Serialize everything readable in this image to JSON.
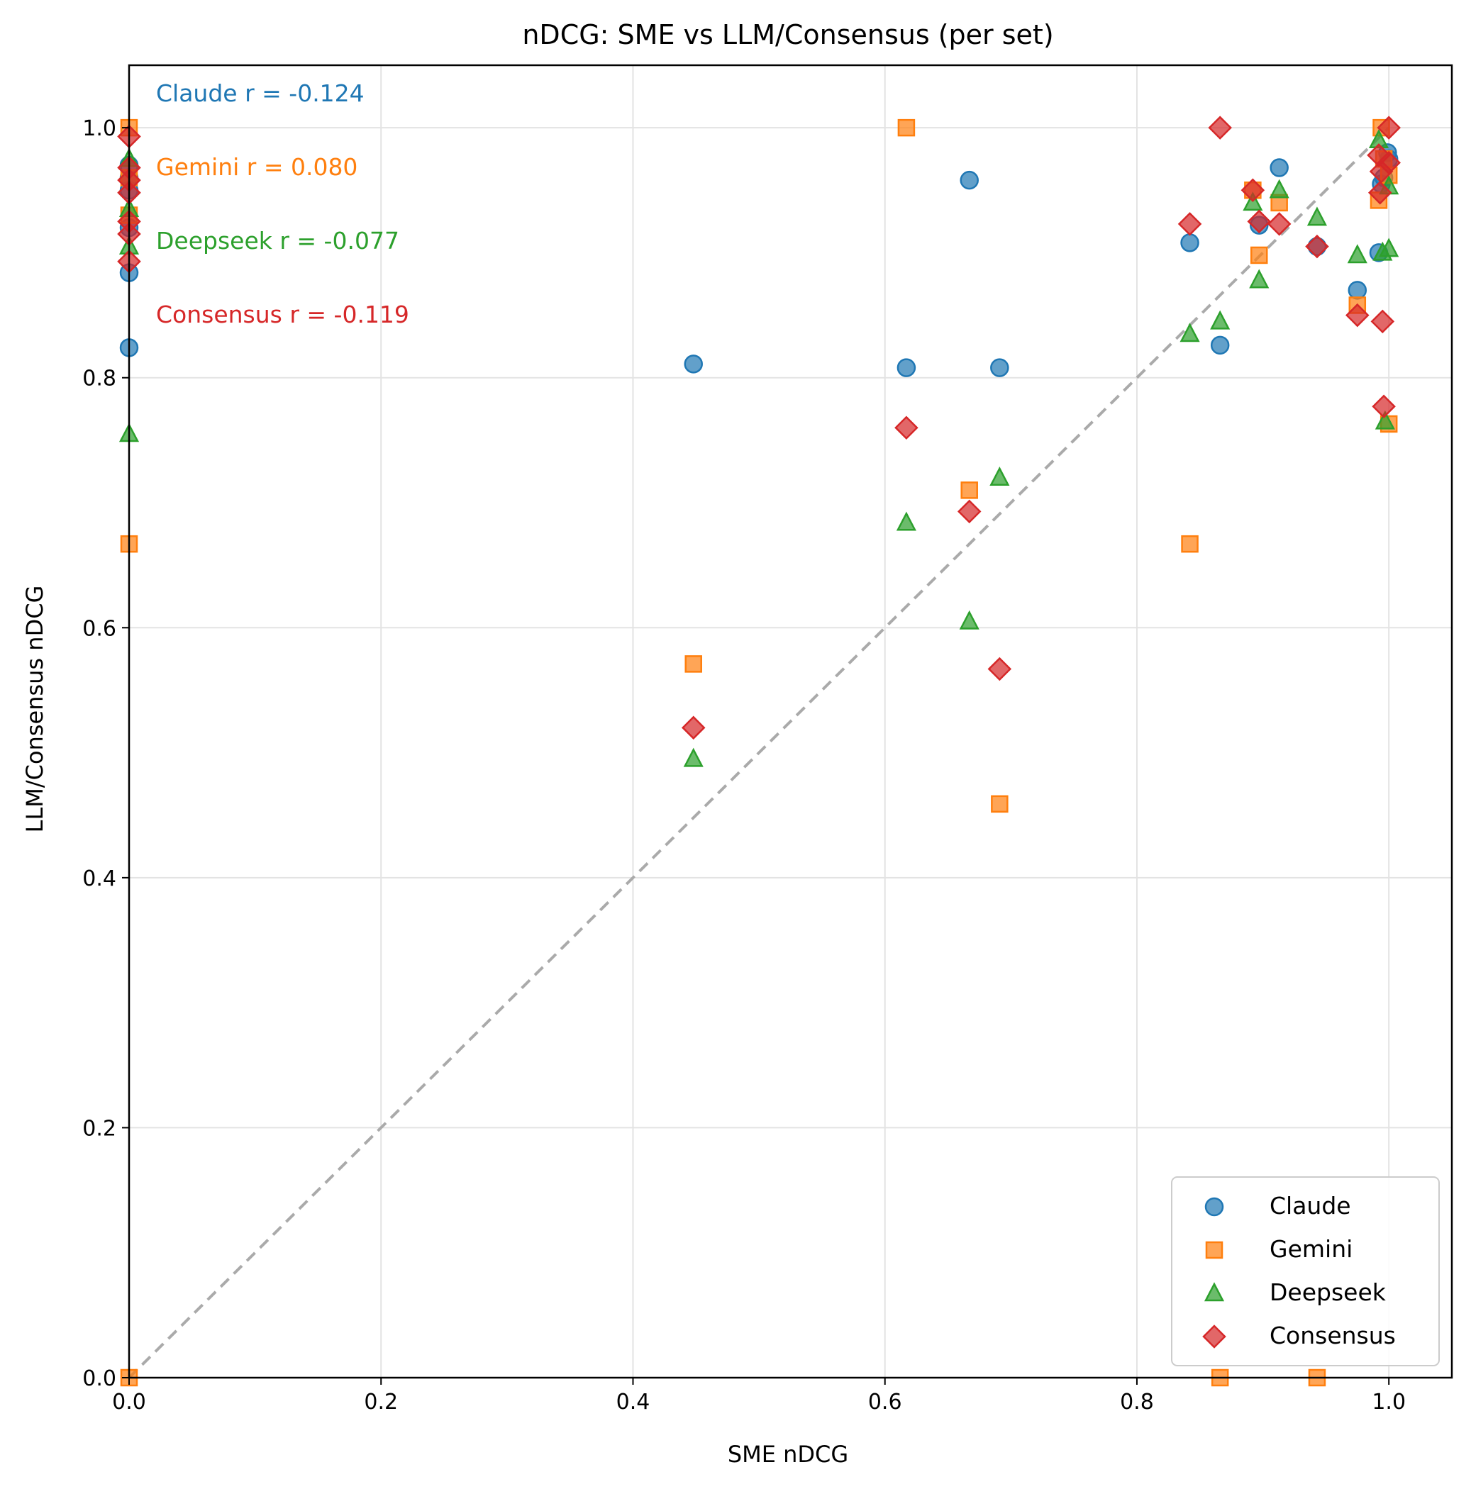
{
  "chart_data": {
    "type": "scatter",
    "title": "nDCG: SME vs LLM/Consensus (per set)",
    "xlabel": "SME nDCG",
    "ylabel": "LLM/Consensus nDCG",
    "xlim": [
      0.0,
      1.05
    ],
    "ylim": [
      0.0,
      1.05
    ],
    "xticks": [
      0.0,
      0.2,
      0.4,
      0.6,
      0.8,
      1.0
    ],
    "yticks": [
      0.0,
      0.2,
      0.4,
      0.6,
      0.8,
      1.0
    ],
    "xtick_labels": [
      "0.0",
      "0.2",
      "0.4",
      "0.6",
      "0.8",
      "1.0"
    ],
    "ytick_labels": [
      "0.0",
      "0.2",
      "0.4",
      "0.6",
      "0.8",
      "1.0"
    ],
    "grid": true,
    "legend_position": "lower-right",
    "reference_line": {
      "from": [
        0,
        0
      ],
      "to": [
        1,
        1
      ],
      "style": "dashed",
      "color": "#aaaaaa"
    },
    "annotations": [
      {
        "text": "Claude r = -0.124",
        "color": "#1f77b4"
      },
      {
        "text": "Gemini r = 0.080",
        "color": "#ff7f0e"
      },
      {
        "text": "Deepseek r = -0.077",
        "color": "#2ca02c"
      },
      {
        "text": "Consensus r = -0.119",
        "color": "#d62728"
      }
    ],
    "series": [
      {
        "name": "Claude",
        "marker": "circle",
        "color": "#1f77b4",
        "points": [
          [
            0.0,
            0.97
          ],
          [
            0.0,
            0.96
          ],
          [
            0.0,
            0.95
          ],
          [
            0.0,
            0.92
          ],
          [
            0.0,
            0.884
          ],
          [
            0.0,
            0.824
          ],
          [
            0.448,
            0.811
          ],
          [
            0.617,
            0.808
          ],
          [
            0.667,
            0.958
          ],
          [
            0.691,
            0.808
          ],
          [
            0.842,
            0.908
          ],
          [
            0.866,
            0.826
          ],
          [
            0.897,
            0.922
          ],
          [
            0.913,
            0.968
          ],
          [
            0.943,
            0.905
          ],
          [
            0.975,
            0.87
          ],
          [
            0.992,
            0.9
          ],
          [
            0.994,
            0.955
          ],
          [
            0.996,
            0.96
          ],
          [
            0.999,
            0.98
          ],
          [
            1.0,
            0.975
          ]
        ]
      },
      {
        "name": "Gemini",
        "marker": "square",
        "color": "#ff7f0e",
        "points": [
          [
            0.0,
            1.0
          ],
          [
            0.0,
            0.96
          ],
          [
            0.0,
            0.93
          ],
          [
            0.0,
            0.667
          ],
          [
            0.0,
            0.0
          ],
          [
            0.448,
            0.571
          ],
          [
            0.617,
            1.0
          ],
          [
            0.667,
            0.71
          ],
          [
            0.691,
            0.459
          ],
          [
            0.842,
            0.667
          ],
          [
            0.866,
            0.0
          ],
          [
            0.892,
            0.95
          ],
          [
            0.897,
            0.898
          ],
          [
            0.913,
            0.94
          ],
          [
            0.943,
            0.0
          ],
          [
            0.975,
            0.858
          ],
          [
            0.992,
            0.942
          ],
          [
            0.994,
            1.0
          ],
          [
            0.996,
            0.975
          ],
          [
            1.0,
            0.962
          ],
          [
            1.0,
            0.763
          ]
        ]
      },
      {
        "name": "Deepseek",
        "marker": "triangle",
        "color": "#2ca02c",
        "points": [
          [
            0.0,
            0.975
          ],
          [
            0.0,
            0.935
          ],
          [
            0.0,
            0.905
          ],
          [
            0.0,
            0.755
          ],
          [
            0.448,
            0.495
          ],
          [
            0.617,
            0.684
          ],
          [
            0.667,
            0.605
          ],
          [
            0.691,
            0.72
          ],
          [
            0.842,
            0.835
          ],
          [
            0.866,
            0.845
          ],
          [
            0.892,
            0.94
          ],
          [
            0.897,
            0.878
          ],
          [
            0.913,
            0.95
          ],
          [
            0.943,
            0.928
          ],
          [
            0.975,
            0.898
          ],
          [
            0.992,
            0.99
          ],
          [
            0.995,
            0.9
          ],
          [
            0.997,
            0.765
          ],
          [
            1.0,
            0.903
          ],
          [
            1.0,
            0.953
          ]
        ]
      },
      {
        "name": "Consensus",
        "marker": "diamond",
        "color": "#d62728",
        "points": [
          [
            0.0,
            0.993
          ],
          [
            0.0,
            0.968
          ],
          [
            0.0,
            0.958
          ],
          [
            0.0,
            0.948
          ],
          [
            0.0,
            0.925
          ],
          [
            0.0,
            0.915
          ],
          [
            0.0,
            0.893
          ],
          [
            0.448,
            0.52
          ],
          [
            0.617,
            0.76
          ],
          [
            0.667,
            0.693
          ],
          [
            0.691,
            0.567
          ],
          [
            0.842,
            0.923
          ],
          [
            0.866,
            1.0
          ],
          [
            0.892,
            0.95
          ],
          [
            0.897,
            0.925
          ],
          [
            0.913,
            0.923
          ],
          [
            0.943,
            0.905
          ],
          [
            0.975,
            0.85
          ],
          [
            0.992,
            0.978
          ],
          [
            0.993,
            0.948
          ],
          [
            0.994,
            0.965
          ],
          [
            0.995,
            0.845
          ],
          [
            0.996,
            0.777
          ],
          [
            1.0,
            1.0
          ],
          [
            1.0,
            0.972
          ]
        ]
      }
    ]
  }
}
